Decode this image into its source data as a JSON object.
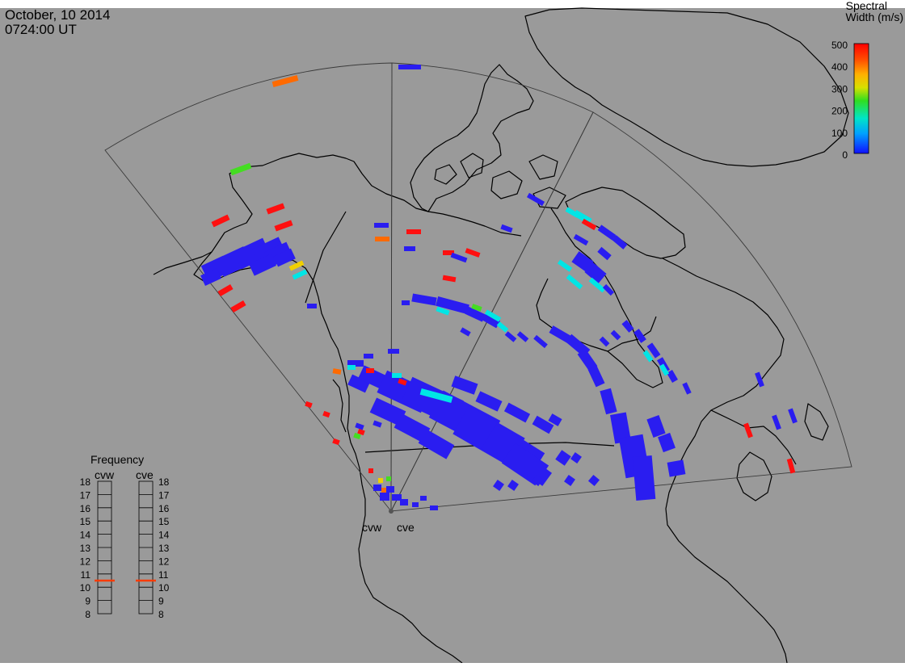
{
  "header": {
    "date": "October, 10 2014",
    "time": "0724:00 UT"
  },
  "colorbar": {
    "title_line1": "Spectral",
    "title_line2": "Width (m/s)",
    "ticks": [
      "500",
      "400",
      "300",
      "200",
      "100",
      "0"
    ],
    "min": 0,
    "max": 500
  },
  "frequency_panel": {
    "title": "Frequency",
    "radars": [
      {
        "name": "cvw",
        "value": 10.5
      },
      {
        "name": "cve",
        "value": 10.5
      }
    ],
    "ticks": [
      "18",
      "17",
      "16",
      "15",
      "14",
      "13",
      "12",
      "11",
      "10",
      "9",
      "8"
    ]
  },
  "radar_labels": [
    "cvw",
    "cve"
  ],
  "colors": {
    "background": "#9a9a9a",
    "low": "#2a1df0",
    "mid": "#00e5e5",
    "green": "#44dd22",
    "yellow": "#f0d000",
    "orange": "#ff6a00",
    "high": "#ff1010",
    "frequency_marker": "#ff3b00"
  }
}
